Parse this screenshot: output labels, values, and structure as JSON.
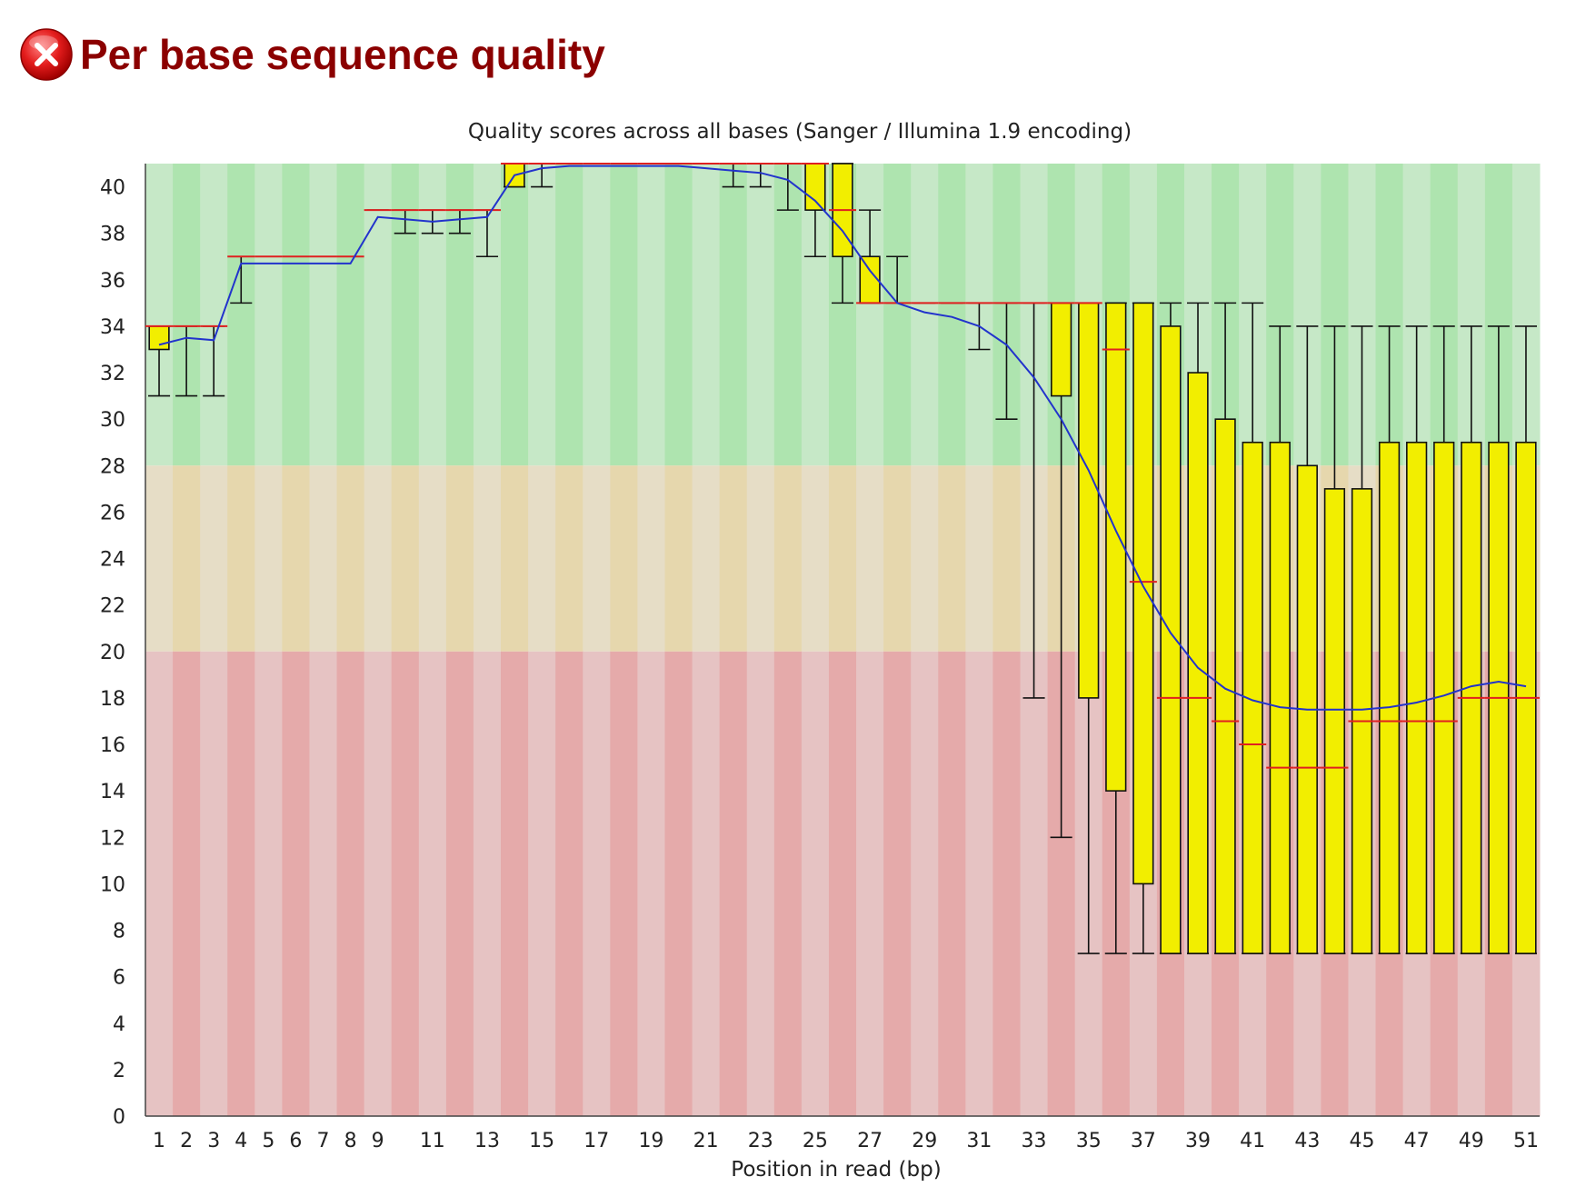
{
  "module": {
    "title": "Per base sequence quality",
    "status": "fail",
    "status_icon": "fail-x-icon"
  },
  "colors": {
    "title": "#8b0000",
    "box": "#f2ee00",
    "median": "#e02020",
    "mean_line": "#2233cc",
    "whisker": "#111111",
    "good_dark": "#aee4af",
    "good_light": "#c6e8c7",
    "warn_dark": "#e6d7ad",
    "warn_light": "#e6ddc6",
    "poor_dark": "#e5aaaa",
    "poor_light": "#e6c3c3"
  },
  "chart_data": {
    "type": "boxplot",
    "title": "Quality scores across all bases (Sanger / Illumina 1.9 encoding)",
    "xlabel": "Position in read (bp)",
    "ylabel": "",
    "ylim": [
      0,
      41
    ],
    "y_ticks": [
      0,
      2,
      4,
      6,
      8,
      10,
      12,
      14,
      16,
      18,
      20,
      22,
      24,
      26,
      28,
      30,
      32,
      34,
      36,
      38,
      40
    ],
    "x_tick_labels": [
      "1",
      "2",
      "3",
      "4",
      "5",
      "6",
      "7",
      "8",
      "9",
      "11",
      "13",
      "15",
      "17",
      "19",
      "21",
      "23",
      "25",
      "27",
      "29",
      "31",
      "33",
      "35",
      "37",
      "39",
      "41",
      "43",
      "45",
      "47",
      "49",
      "51"
    ],
    "bands": [
      {
        "name": "good",
        "from": 28,
        "to": 41
      },
      {
        "name": "warning",
        "from": 20,
        "to": 28
      },
      {
        "name": "poor",
        "from": 0,
        "to": 20
      }
    ],
    "positions": [
      {
        "pos": 1,
        "p10": 31,
        "q1": 33,
        "median": 34,
        "q3": 34,
        "p90": 34,
        "mean": 33.2
      },
      {
        "pos": 2,
        "p10": 31,
        "q1": 34,
        "median": 34,
        "q3": 34,
        "p90": 34,
        "mean": 33.5
      },
      {
        "pos": 3,
        "p10": 31,
        "q1": 34,
        "median": 34,
        "q3": 34,
        "p90": 34,
        "mean": 33.4
      },
      {
        "pos": 4,
        "p10": 35,
        "q1": 37,
        "median": 37,
        "q3": 37,
        "p90": 37,
        "mean": 36.7
      },
      {
        "pos": 5,
        "p10": 37,
        "q1": 37,
        "median": 37,
        "q3": 37,
        "p90": 37,
        "mean": 36.7
      },
      {
        "pos": 6,
        "p10": 37,
        "q1": 37,
        "median": 37,
        "q3": 37,
        "p90": 37,
        "mean": 36.7
      },
      {
        "pos": 7,
        "p10": 37,
        "q1": 37,
        "median": 37,
        "q3": 37,
        "p90": 37,
        "mean": 36.7
      },
      {
        "pos": 8,
        "p10": 37,
        "q1": 37,
        "median": 37,
        "q3": 37,
        "p90": 37,
        "mean": 36.7
      },
      {
        "pos": 9,
        "p10": 39,
        "q1": 39,
        "median": 39,
        "q3": 39,
        "p90": 39,
        "mean": 38.7
      },
      {
        "pos": 10,
        "p10": 38,
        "q1": 39,
        "median": 39,
        "q3": 39,
        "p90": 39,
        "mean": 38.6
      },
      {
        "pos": 11,
        "p10": 38,
        "q1": 39,
        "median": 39,
        "q3": 39,
        "p90": 39,
        "mean": 38.5
      },
      {
        "pos": 12,
        "p10": 38,
        "q1": 39,
        "median": 39,
        "q3": 39,
        "p90": 39,
        "mean": 38.6
      },
      {
        "pos": 13,
        "p10": 37,
        "q1": 39,
        "median": 39,
        "q3": 39,
        "p90": 39,
        "mean": 38.7
      },
      {
        "pos": 14,
        "p10": 40,
        "q1": 40,
        "median": 41,
        "q3": 41,
        "p90": 41,
        "mean": 40.5
      },
      {
        "pos": 15,
        "p10": 40,
        "q1": 41,
        "median": 41,
        "q3": 41,
        "p90": 41,
        "mean": 40.8
      },
      {
        "pos": 16,
        "p10": 41,
        "q1": 41,
        "median": 41,
        "q3": 41,
        "p90": 41,
        "mean": 40.9
      },
      {
        "pos": 17,
        "p10": 41,
        "q1": 41,
        "median": 41,
        "q3": 41,
        "p90": 41,
        "mean": 40.9
      },
      {
        "pos": 18,
        "p10": 41,
        "q1": 41,
        "median": 41,
        "q3": 41,
        "p90": 41,
        "mean": 40.9
      },
      {
        "pos": 19,
        "p10": 41,
        "q1": 41,
        "median": 41,
        "q3": 41,
        "p90": 41,
        "mean": 40.9
      },
      {
        "pos": 20,
        "p10": 41,
        "q1": 41,
        "median": 41,
        "q3": 41,
        "p90": 41,
        "mean": 40.9
      },
      {
        "pos": 21,
        "p10": 41,
        "q1": 41,
        "median": 41,
        "q3": 41,
        "p90": 41,
        "mean": 40.8
      },
      {
        "pos": 22,
        "p10": 40,
        "q1": 41,
        "median": 41,
        "q3": 41,
        "p90": 41,
        "mean": 40.7
      },
      {
        "pos": 23,
        "p10": 40,
        "q1": 41,
        "median": 41,
        "q3": 41,
        "p90": 41,
        "mean": 40.6
      },
      {
        "pos": 24,
        "p10": 39,
        "q1": 41,
        "median": 41,
        "q3": 41,
        "p90": 41,
        "mean": 40.3
      },
      {
        "pos": 25,
        "p10": 37,
        "q1": 39,
        "median": 41,
        "q3": 41,
        "p90": 41,
        "mean": 39.4
      },
      {
        "pos": 26,
        "p10": 35,
        "q1": 37,
        "median": 39,
        "q3": 41,
        "p90": 41,
        "mean": 38.1
      },
      {
        "pos": 27,
        "p10": 35,
        "q1": 35,
        "median": 35,
        "q3": 37,
        "p90": 39,
        "mean": 36.4
      },
      {
        "pos": 28,
        "p10": 35,
        "q1": 35,
        "median": 35,
        "q3": 35,
        "p90": 37,
        "mean": 35.0
      },
      {
        "pos": 29,
        "p10": 35,
        "q1": 35,
        "median": 35,
        "q3": 35,
        "p90": 35,
        "mean": 34.6
      },
      {
        "pos": 30,
        "p10": 35,
        "q1": 35,
        "median": 35,
        "q3": 35,
        "p90": 35,
        "mean": 34.4
      },
      {
        "pos": 31,
        "p10": 33,
        "q1": 35,
        "median": 35,
        "q3": 35,
        "p90": 35,
        "mean": 34.0
      },
      {
        "pos": 32,
        "p10": 30,
        "q1": 35,
        "median": 35,
        "q3": 35,
        "p90": 35,
        "mean": 33.2
      },
      {
        "pos": 33,
        "p10": 18,
        "q1": 35,
        "median": 35,
        "q3": 35,
        "p90": 35,
        "mean": 31.8
      },
      {
        "pos": 34,
        "p10": 12,
        "q1": 31,
        "median": 35,
        "q3": 35,
        "p90": 35,
        "mean": 30.0
      },
      {
        "pos": 35,
        "p10": 7,
        "q1": 18,
        "median": 35,
        "q3": 35,
        "p90": 35,
        "mean": 27.8
      },
      {
        "pos": 36,
        "p10": 7,
        "q1": 14,
        "median": 33,
        "q3": 35,
        "p90": 35,
        "mean": 25.2
      },
      {
        "pos": 37,
        "p10": 7,
        "q1": 10,
        "median": 23,
        "q3": 35,
        "p90": 35,
        "mean": 22.8
      },
      {
        "pos": 38,
        "p10": 7,
        "q1": 7,
        "median": 18,
        "q3": 34,
        "p90": 35,
        "mean": 20.8
      },
      {
        "pos": 39,
        "p10": 7,
        "q1": 7,
        "median": 18,
        "q3": 32,
        "p90": 35,
        "mean": 19.3
      },
      {
        "pos": 40,
        "p10": 7,
        "q1": 7,
        "median": 17,
        "q3": 30,
        "p90": 35,
        "mean": 18.4
      },
      {
        "pos": 41,
        "p10": 7,
        "q1": 7,
        "median": 16,
        "q3": 29,
        "p90": 35,
        "mean": 17.9
      },
      {
        "pos": 42,
        "p10": 7,
        "q1": 7,
        "median": 15,
        "q3": 29,
        "p90": 34,
        "mean": 17.6
      },
      {
        "pos": 43,
        "p10": 7,
        "q1": 7,
        "median": 15,
        "q3": 28,
        "p90": 34,
        "mean": 17.5
      },
      {
        "pos": 44,
        "p10": 7,
        "q1": 7,
        "median": 15,
        "q3": 27,
        "p90": 34,
        "mean": 17.5
      },
      {
        "pos": 45,
        "p10": 7,
        "q1": 7,
        "median": 17,
        "q3": 27,
        "p90": 34,
        "mean": 17.5
      },
      {
        "pos": 46,
        "p10": 7,
        "q1": 7,
        "median": 17,
        "q3": 29,
        "p90": 34,
        "mean": 17.6
      },
      {
        "pos": 47,
        "p10": 7,
        "q1": 7,
        "median": 17,
        "q3": 29,
        "p90": 34,
        "mean": 17.8
      },
      {
        "pos": 48,
        "p10": 7,
        "q1": 7,
        "median": 17,
        "q3": 29,
        "p90": 34,
        "mean": 18.1
      },
      {
        "pos": 49,
        "p10": 7,
        "q1": 7,
        "median": 18,
        "q3": 29,
        "p90": 34,
        "mean": 18.5
      },
      {
        "pos": 50,
        "p10": 7,
        "q1": 7,
        "median": 18,
        "q3": 29,
        "p90": 34,
        "mean": 18.7
      },
      {
        "pos": 51,
        "p10": 7,
        "q1": 7,
        "median": 18,
        "q3": 29,
        "p90": 34,
        "mean": 18.5
      }
    ]
  }
}
